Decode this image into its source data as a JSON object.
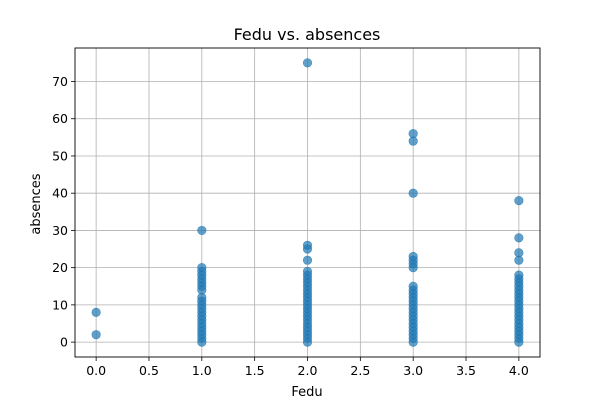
{
  "chart_data": {
    "type": "scatter",
    "title": "Fedu vs. absences",
    "xlabel": "Fedu",
    "ylabel": "absences",
    "xlim": [
      -0.2,
      4.2
    ],
    "ylim": [
      -4,
      79
    ],
    "x_ticks": [
      0.0,
      0.5,
      1.0,
      1.5,
      2.0,
      2.5,
      3.0,
      3.5,
      4.0
    ],
    "x_tick_labels": [
      "0.0",
      "0.5",
      "1.0",
      "1.5",
      "2.0",
      "2.5",
      "3.0",
      "3.5",
      "4.0"
    ],
    "y_ticks": [
      0,
      10,
      20,
      30,
      40,
      50,
      60,
      70
    ],
    "y_tick_labels": [
      "0",
      "10",
      "20",
      "30",
      "40",
      "50",
      "60",
      "70"
    ],
    "grid": true,
    "marker_color": "#1f77b4",
    "marker_alpha": 0.7,
    "points": [
      {
        "x": 0,
        "y": 2
      },
      {
        "x": 0,
        "y": 8
      },
      {
        "x": 1,
        "y": 0
      },
      {
        "x": 1,
        "y": 1
      },
      {
        "x": 1,
        "y": 2
      },
      {
        "x": 1,
        "y": 3
      },
      {
        "x": 1,
        "y": 4
      },
      {
        "x": 1,
        "y": 5
      },
      {
        "x": 1,
        "y": 6
      },
      {
        "x": 1,
        "y": 7
      },
      {
        "x": 1,
        "y": 8
      },
      {
        "x": 1,
        "y": 9
      },
      {
        "x": 1,
        "y": 10
      },
      {
        "x": 1,
        "y": 11
      },
      {
        "x": 1,
        "y": 12
      },
      {
        "x": 1,
        "y": 14
      },
      {
        "x": 1,
        "y": 15
      },
      {
        "x": 1,
        "y": 16
      },
      {
        "x": 1,
        "y": 17
      },
      {
        "x": 1,
        "y": 18
      },
      {
        "x": 1,
        "y": 19
      },
      {
        "x": 1,
        "y": 20
      },
      {
        "x": 1,
        "y": 30
      },
      {
        "x": 2,
        "y": 0
      },
      {
        "x": 2,
        "y": 1
      },
      {
        "x": 2,
        "y": 2
      },
      {
        "x": 2,
        "y": 3
      },
      {
        "x": 2,
        "y": 4
      },
      {
        "x": 2,
        "y": 5
      },
      {
        "x": 2,
        "y": 6
      },
      {
        "x": 2,
        "y": 7
      },
      {
        "x": 2,
        "y": 8
      },
      {
        "x": 2,
        "y": 9
      },
      {
        "x": 2,
        "y": 10
      },
      {
        "x": 2,
        "y": 11
      },
      {
        "x": 2,
        "y": 12
      },
      {
        "x": 2,
        "y": 13
      },
      {
        "x": 2,
        "y": 14
      },
      {
        "x": 2,
        "y": 15
      },
      {
        "x": 2,
        "y": 16
      },
      {
        "x": 2,
        "y": 17
      },
      {
        "x": 2,
        "y": 18
      },
      {
        "x": 2,
        "y": 19
      },
      {
        "x": 2,
        "y": 22
      },
      {
        "x": 2,
        "y": 25
      },
      {
        "x": 2,
        "y": 26
      },
      {
        "x": 2,
        "y": 75
      },
      {
        "x": 3,
        "y": 0
      },
      {
        "x": 3,
        "y": 1
      },
      {
        "x": 3,
        "y": 2
      },
      {
        "x": 3,
        "y": 3
      },
      {
        "x": 3,
        "y": 4
      },
      {
        "x": 3,
        "y": 5
      },
      {
        "x": 3,
        "y": 6
      },
      {
        "x": 3,
        "y": 7
      },
      {
        "x": 3,
        "y": 8
      },
      {
        "x": 3,
        "y": 9
      },
      {
        "x": 3,
        "y": 10
      },
      {
        "x": 3,
        "y": 11
      },
      {
        "x": 3,
        "y": 12
      },
      {
        "x": 3,
        "y": 13
      },
      {
        "x": 3,
        "y": 14
      },
      {
        "x": 3,
        "y": 15
      },
      {
        "x": 3,
        "y": 20
      },
      {
        "x": 3,
        "y": 21
      },
      {
        "x": 3,
        "y": 22
      },
      {
        "x": 3,
        "y": 23
      },
      {
        "x": 3,
        "y": 40
      },
      {
        "x": 3,
        "y": 54
      },
      {
        "x": 3,
        "y": 56
      },
      {
        "x": 4,
        "y": 0
      },
      {
        "x": 4,
        "y": 1
      },
      {
        "x": 4,
        "y": 2
      },
      {
        "x": 4,
        "y": 3
      },
      {
        "x": 4,
        "y": 4
      },
      {
        "x": 4,
        "y": 5
      },
      {
        "x": 4,
        "y": 6
      },
      {
        "x": 4,
        "y": 7
      },
      {
        "x": 4,
        "y": 8
      },
      {
        "x": 4,
        "y": 9
      },
      {
        "x": 4,
        "y": 10
      },
      {
        "x": 4,
        "y": 11
      },
      {
        "x": 4,
        "y": 12
      },
      {
        "x": 4,
        "y": 13
      },
      {
        "x": 4,
        "y": 14
      },
      {
        "x": 4,
        "y": 15
      },
      {
        "x": 4,
        "y": 16
      },
      {
        "x": 4,
        "y": 17
      },
      {
        "x": 4,
        "y": 18
      },
      {
        "x": 4,
        "y": 22
      },
      {
        "x": 4,
        "y": 24
      },
      {
        "x": 4,
        "y": 28
      },
      {
        "x": 4,
        "y": 38
      }
    ]
  }
}
